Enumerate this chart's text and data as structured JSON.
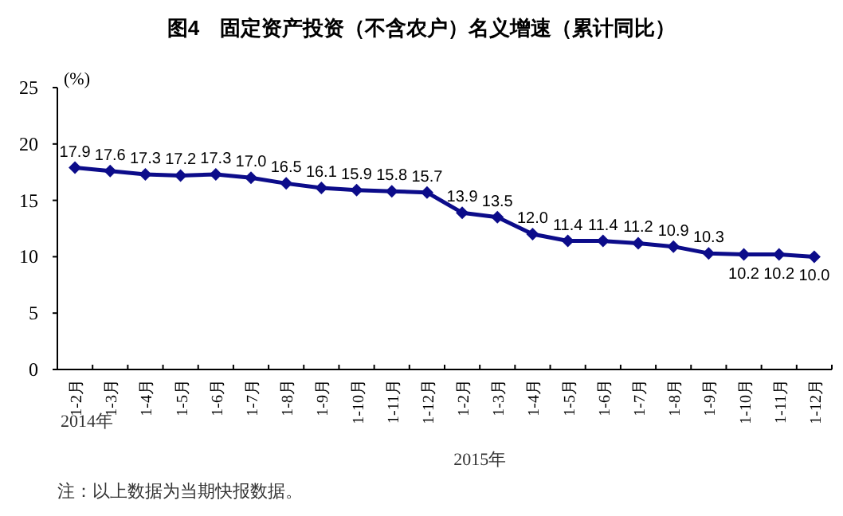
{
  "chart_data": {
    "type": "line",
    "title": "图4　固定资产投资（不含农户）名义增速（累计同比）",
    "ylabel": "(%)",
    "categories": [
      "1-2月",
      "1-3月",
      "1-4月",
      "1-5月",
      "1-6月",
      "1-7月",
      "1-8月",
      "1-9月",
      "1-10月",
      "1-11月",
      "1-12月",
      "1-2月",
      "1-3月",
      "1-4月",
      "1-5月",
      "1-6月",
      "1-7月",
      "1-8月",
      "1-9月",
      "1-10月",
      "1-11月",
      "1-12月"
    ],
    "series": [
      {
        "color": "#0c0c8a",
        "values": [
          17.9,
          17.6,
          17.3,
          17.2,
          17.3,
          17.0,
          16.5,
          16.1,
          15.9,
          15.8,
          15.7,
          13.9,
          13.5,
          12.0,
          11.4,
          11.4,
          11.2,
          10.9,
          10.3,
          10.2,
          10.2,
          10.0
        ],
        "value_labels": [
          "17.9",
          "17.6",
          "17.3",
          "17.2",
          "17.3",
          "17.0",
          "16.5",
          "16.1",
          "15.9",
          "15.8",
          "15.7",
          "13.9",
          "13.5",
          "12.0",
          "11.4",
          "11.4",
          "11.2",
          "10.9",
          "10.3",
          "10.2",
          "10.2",
          "10.0"
        ]
      }
    ],
    "ylim": [
      0,
      25
    ],
    "yticks": [
      0,
      5,
      10,
      15,
      20,
      25
    ],
    "marker": "diamond",
    "grid": false,
    "annotations": [
      "2014年",
      "2015年",
      "注：以上数据为当期快报数据。"
    ]
  }
}
